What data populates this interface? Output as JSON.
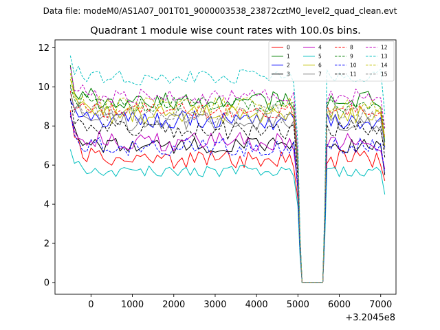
{
  "figure": {
    "suptitle": "Data file: modeM0/AS1A07_001T01_9000003538_23872cztM0_level2_quad_clean.evt"
  },
  "chart_data": {
    "type": "line",
    "title": "Quadrant 1 module wise count rates with 100.0s bins.",
    "xlabel": "",
    "ylabel": "",
    "x_offset_label": "+3.2045e8",
    "xlim": [
      -870,
      7370
    ],
    "ylim": [
      -0.6,
      12.4
    ],
    "xticks": [
      0,
      1000,
      2000,
      3000,
      4000,
      5000,
      6000,
      7000
    ],
    "yticks": [
      0,
      2,
      4,
      6,
      8,
      10,
      12
    ],
    "grid": false,
    "legend_position": "top-right",
    "legend_columns": 4,
    "segment1_x": [
      -500,
      -400,
      -300,
      -200,
      -100,
      0,
      100,
      200,
      300,
      400,
      500,
      600,
      700,
      800,
      900,
      1000,
      1100,
      1200,
      1300,
      1400,
      1500,
      1600,
      1700,
      1800,
      1900,
      2000,
      2100,
      2200,
      2300,
      2400,
      2500,
      2600,
      2700,
      2800,
      2900,
      3000,
      3100,
      3200,
      3300,
      3400,
      3500,
      3600,
      3700,
      3800,
      3900,
      4000,
      4100,
      4200,
      4300,
      4400,
      4500,
      4600,
      4700,
      4800,
      4900,
      5000,
      5050
    ],
    "gap_x": [
      5100,
      5600
    ],
    "gap_value": 0.0,
    "segment2_x": [
      5650,
      5700,
      5800,
      5900,
      6000,
      6100,
      6200,
      6300,
      6400,
      6500,
      6600,
      6700,
      6800,
      6900,
      7000,
      7100
    ],
    "series": [
      {
        "name": "0",
        "color": "#ff0000",
        "dash": "solid",
        "base": 6.3,
        "start": 8.8,
        "end": 5.2,
        "amp": 0.5
      },
      {
        "name": "1",
        "color": "#008000",
        "dash": "solid",
        "base": 9.3,
        "start": 11.1,
        "end": 7.2,
        "amp": 0.5
      },
      {
        "name": "2",
        "color": "#0000ff",
        "dash": "solid",
        "base": 8.3,
        "start": 9.3,
        "end": 6.9,
        "amp": 0.5
      },
      {
        "name": "3",
        "color": "#000000",
        "dash": "solid",
        "base": 7.0,
        "start": 8.5,
        "end": 5.5,
        "amp": 0.4
      },
      {
        "name": "4",
        "color": "#bf00bf",
        "dash": "solid",
        "base": 7.2,
        "start": 8.6,
        "end": 5.8,
        "amp": 0.5
      },
      {
        "name": "5",
        "color": "#00bfbf",
        "dash": "solid",
        "base": 5.7,
        "start": 6.8,
        "end": 4.5,
        "amp": 0.3
      },
      {
        "name": "6",
        "color": "#bfbf00",
        "dash": "solid",
        "base": 8.6,
        "start": 10.4,
        "end": 7.0,
        "amp": 0.5
      },
      {
        "name": "7",
        "color": "#808080",
        "dash": "solid",
        "base": 8.2,
        "start": 9.7,
        "end": 6.8,
        "amp": 0.5
      },
      {
        "name": "8",
        "color": "#ff0000",
        "dash": "dashed",
        "base": 8.8,
        "start": 9.8,
        "end": 7.4,
        "amp": 0.4
      },
      {
        "name": "9",
        "color": "#008000",
        "dash": "dashed",
        "base": 9.1,
        "start": 10.1,
        "end": 7.8,
        "amp": 0.4
      },
      {
        "name": "10",
        "color": "#0000ff",
        "dash": "dashed",
        "base": 6.9,
        "start": 8.7,
        "end": 5.6,
        "amp": 0.5
      },
      {
        "name": "11",
        "color": "#000000",
        "dash": "dashed",
        "base": 7.8,
        "start": 9.4,
        "end": 6.4,
        "amp": 0.5
      },
      {
        "name": "12",
        "color": "#bf00bf",
        "dash": "dashed",
        "base": 9.5,
        "start": 11.0,
        "end": 7.9,
        "amp": 0.4
      },
      {
        "name": "13",
        "color": "#00bfbf",
        "dash": "dashed",
        "base": 10.5,
        "start": 11.6,
        "end": 8.6,
        "amp": 0.4
      },
      {
        "name": "14",
        "color": "#bfbf00",
        "dash": "dashed",
        "base": 9.0,
        "start": 10.7,
        "end": 7.4,
        "amp": 0.5
      },
      {
        "name": "15",
        "color": "#808080",
        "dash": "dashed",
        "base": 8.6,
        "start": 10.0,
        "end": 7.1,
        "amp": 0.5
      }
    ]
  }
}
